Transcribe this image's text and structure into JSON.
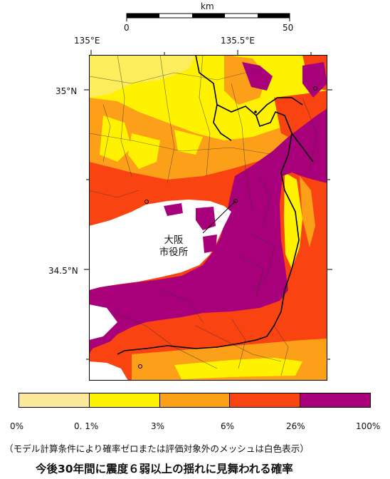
{
  "scalebar": {
    "unit": "km",
    "start": "0",
    "end": "50"
  },
  "longitude_labels": [
    "135°E",
    "135.5°E"
  ],
  "latitude_labels": [
    "35°N",
    "34.5°N"
  ],
  "callout": {
    "line1": "大阪",
    "line2": "市役所"
  },
  "legend": {
    "colors": [
      "#fce89a",
      "#fef200",
      "#fca01a",
      "#f94412",
      "#a8007a"
    ],
    "ticks": [
      "0%",
      "0. 1%",
      "3%",
      "6%",
      "26%",
      "100%"
    ]
  },
  "caption": "（モデル計算条件により確率ゼロまたは評価対象外のメッシュは白色表示）",
  "title": "今後30年間に震度６弱以上の揺れに見舞われる確率"
}
